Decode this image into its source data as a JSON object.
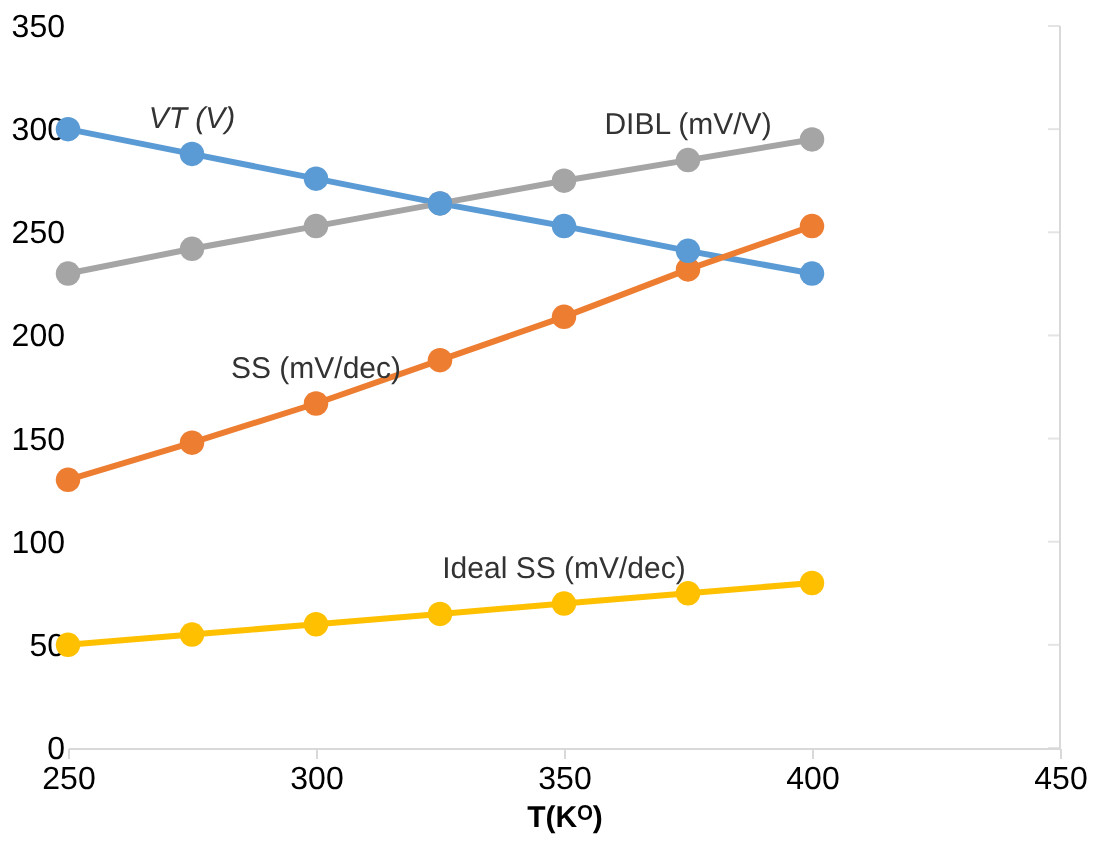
{
  "chart_data": {
    "type": "line",
    "xlabel": "T(Kᴼ)",
    "x": [
      250,
      275,
      300,
      325,
      350,
      375,
      400
    ],
    "series": [
      {
        "name": "VT (V)",
        "color": "#5b9bd5",
        "values": [
          300,
          288,
          276,
          264,
          253,
          241,
          230
        ]
      },
      {
        "name": "DIBL (mV/V)",
        "color": "#a5a5a5",
        "values": [
          230,
          242,
          253,
          264,
          275,
          285,
          295
        ]
      },
      {
        "name": "SS (mV/dec)",
        "color": "#ed7d31",
        "values": [
          130,
          148,
          167,
          188,
          209,
          232,
          253
        ]
      },
      {
        "name": "Ideal SS (mV/dec)",
        "color": "#ffc000",
        "values": [
          50,
          55,
          60,
          65,
          70,
          75,
          80
        ]
      }
    ],
    "xlim": [
      250,
      450
    ],
    "xticks": [
      250,
      300,
      350,
      400,
      450
    ],
    "ylim": [
      0,
      350
    ],
    "yticks": [
      0,
      50,
      100,
      150,
      200,
      250,
      300,
      350
    ],
    "grid": false,
    "legend": false,
    "marker": "circle",
    "line_style": "solid"
  }
}
